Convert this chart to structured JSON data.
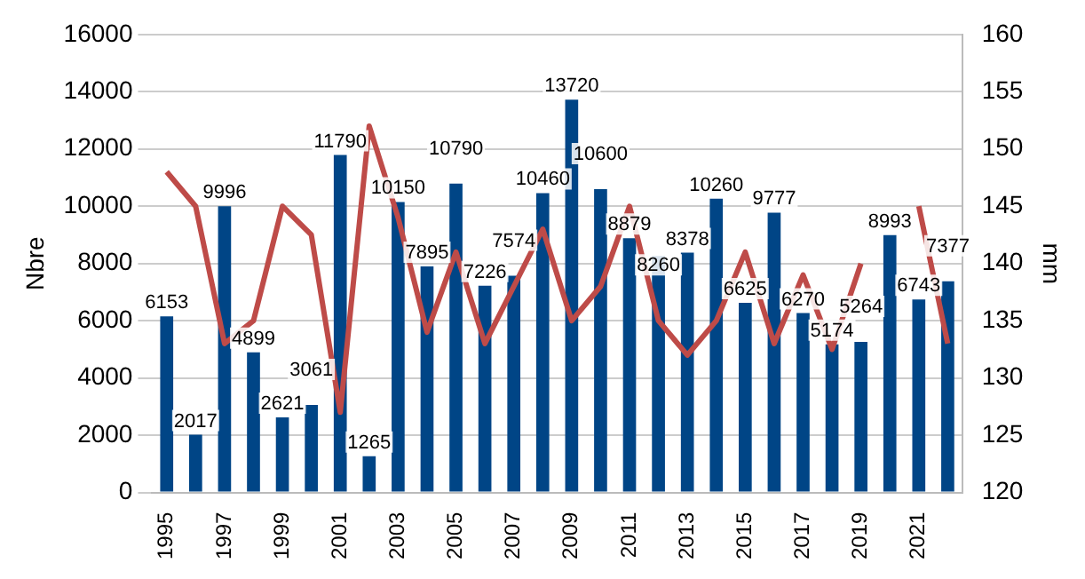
{
  "chart_data": {
    "type": "bar",
    "ylabel": "Nbre",
    "y2label": "mm",
    "categories": [
      "1995",
      null,
      "1997",
      null,
      "1999",
      null,
      "2001",
      null,
      "2003",
      null,
      "2005",
      null,
      "2007",
      null,
      "2009",
      null,
      "2011",
      null,
      "2013",
      null,
      "2015",
      null,
      "2017",
      null,
      "2019",
      null,
      "2021",
      null
    ],
    "series": [
      {
        "color": "#004586",
        "values": [
          6153,
          2017,
          9996,
          4899,
          2621,
          3061,
          11790,
          1265,
          10150,
          7895,
          10790,
          7226,
          7574,
          10460,
          13720,
          10600,
          8879,
          8260,
          8378,
          10260,
          6625,
          9777,
          6270,
          5174,
          5264,
          8993,
          6743,
          7377
        ],
        "value_labels": [
          "6153",
          "2017",
          "9996",
          "4899",
          "2621",
          "3061",
          "11790",
          "1265",
          "10150",
          "7895",
          "10790",
          "7226",
          "7574",
          "10460",
          "13720",
          "10600",
          "8879",
          "8260",
          "8378",
          "10260",
          "6625",
          "9777",
          "6270",
          "5174",
          "5264",
          "8993",
          "6743",
          "7377"
        ]
      },
      {
        "type": "line",
        "axis": "y2",
        "color": "#be4b48",
        "values": [
          148,
          145,
          133,
          135,
          145,
          142.5,
          127,
          152,
          144,
          134,
          141,
          133,
          138,
          143,
          135,
          138,
          145,
          135,
          132,
          135,
          141,
          133,
          139,
          132.5,
          140,
          null,
          145,
          133
        ]
      }
    ],
    "ylim": [
      0,
      16000
    ],
    "yticks": [
      0,
      2000,
      4000,
      6000,
      8000,
      10000,
      12000,
      14000,
      16000
    ],
    "y2lim": [
      120,
      160
    ],
    "y2ticks": [
      120,
      125,
      130,
      135,
      140,
      145,
      150,
      155,
      160
    ],
    "grid": "y",
    "legend": false,
    "marker": "none"
  }
}
